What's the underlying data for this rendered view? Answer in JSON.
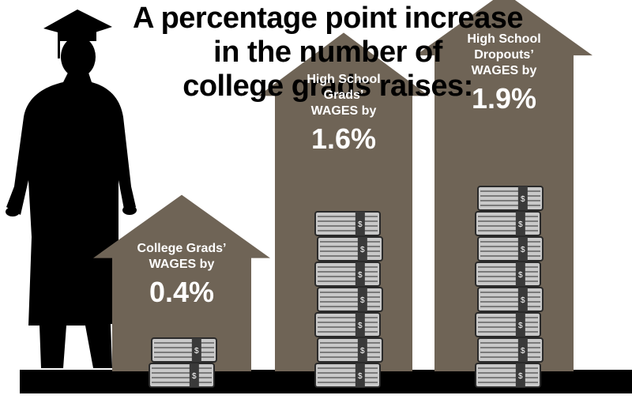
{
  "title_lines": [
    "A percentage point increase",
    "in the number of",
    "college grads raises:"
  ],
  "chart_data": {
    "type": "bar",
    "title": "A percentage point increase in the number of college grads raises:",
    "unit": "%",
    "categories": [
      "College Grads' WAGES by",
      "High School Grads' WAGES by",
      "High School Dropouts' WAGES by"
    ],
    "values": [
      0.4,
      1.6,
      1.9
    ],
    "grid": false,
    "legend": "none"
  },
  "bars": [
    {
      "label_lines": [
        "College Grads’",
        "WAGES by"
      ],
      "value_text": "0.4%"
    },
    {
      "label_lines": [
        "High School",
        "Grads’",
        "WAGES by"
      ],
      "value_text": "1.6%"
    },
    {
      "label_lines": [
        "High School",
        "Dropouts’",
        "WAGES by"
      ],
      "value_text": "1.9%"
    }
  ],
  "colors": {
    "arrow": "#6f6456",
    "ground": "#000000",
    "silhouette": "#000000",
    "money_face": "#c9c9c9",
    "money_edge": "#2a2a2a",
    "band": "#3a3a3a"
  },
  "icons": [
    "graduate-silhouette-icon",
    "money-stack-icon"
  ]
}
